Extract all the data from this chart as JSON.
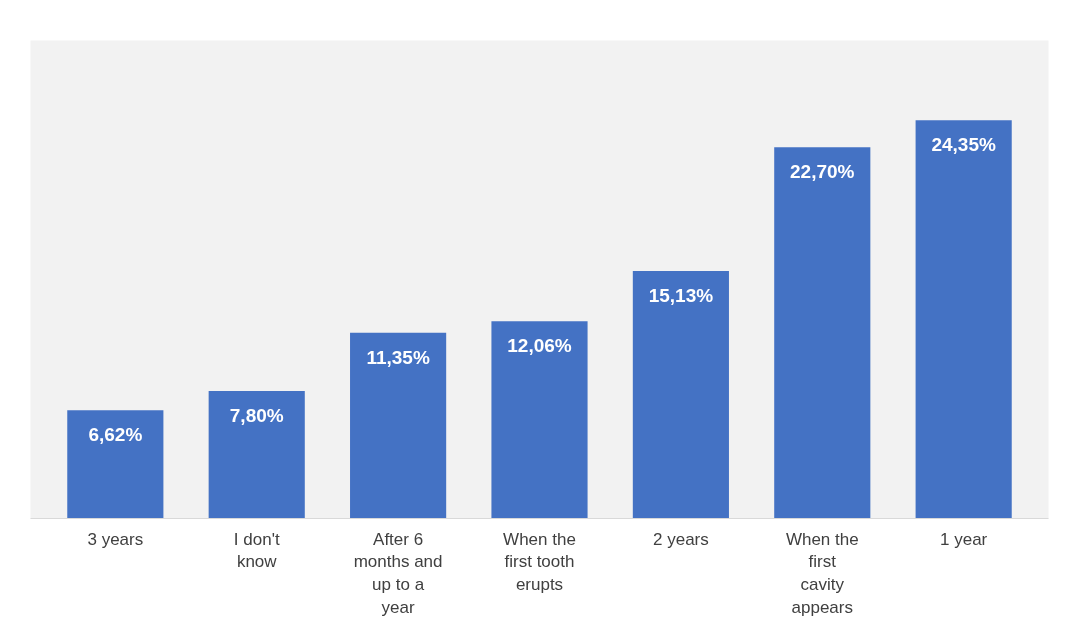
{
  "chart_data": {
    "type": "bar",
    "categories": [
      "3 years",
      "I don't know",
      "After 6 months and up to a year",
      "When the first tooth erupts",
      "2 years",
      "When the first cavity appears",
      "1 year"
    ],
    "values": [
      6.62,
      7.8,
      11.35,
      12.06,
      15.13,
      22.7,
      24.35
    ],
    "value_labels": [
      "6,62%",
      "7,80%",
      "11,35%",
      "12,06%",
      "15,13%",
      "22,70%",
      "24,35%"
    ],
    "color": "#4472c4"
  }
}
